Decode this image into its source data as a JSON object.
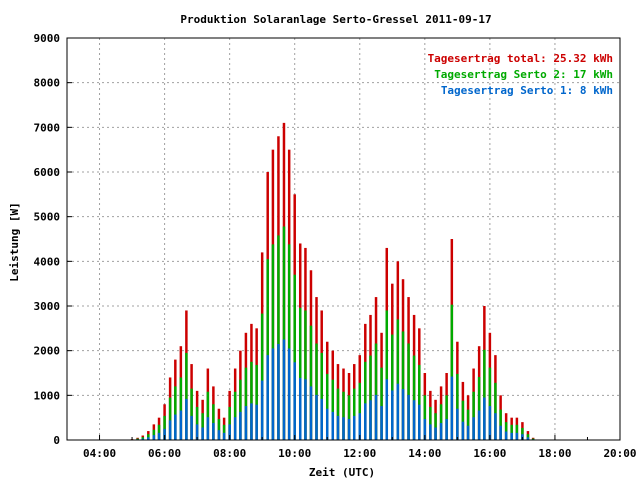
{
  "chart_data": {
    "type": "bar",
    "title": "Produktion Solaranlage Serto-Gressel 2011-09-17",
    "xlabel": "Zeit (UTC)",
    "ylabel": "Leistung [W]",
    "xlim_hours": [
      3.0,
      20.0
    ],
    "ylim": [
      0,
      9000
    ],
    "x_ticks": [
      "04:00",
      "06:00",
      "08:00",
      "10:00",
      "12:00",
      "14:00",
      "16:00",
      "18:00",
      "20:00"
    ],
    "y_ticks": [
      "0",
      "1000",
      "2000",
      "3000",
      "4000",
      "5000",
      "6000",
      "7000",
      "8000",
      "9000"
    ],
    "grid": true,
    "legend_position": "top-right",
    "legend": [
      {
        "label": "Tagesertrag total: 25.32 kWh",
        "color": "#cc0000"
      },
      {
        "label": "Tagesertrag Serto 2: 17 kWh",
        "color": "#00aa00"
      },
      {
        "label": "Tagesertrag Serto 1: 8 kWh",
        "color": "#0066cc"
      }
    ],
    "x_hours": [
      5.0,
      5.17,
      5.33,
      5.5,
      5.67,
      5.83,
      6.0,
      6.17,
      6.33,
      6.5,
      6.67,
      6.83,
      7.0,
      7.17,
      7.33,
      7.5,
      7.67,
      7.83,
      8.0,
      8.17,
      8.33,
      8.5,
      8.67,
      8.83,
      9.0,
      9.17,
      9.33,
      9.5,
      9.67,
      9.83,
      10.0,
      10.17,
      10.33,
      10.5,
      10.67,
      10.83,
      11.0,
      11.17,
      11.33,
      11.5,
      11.67,
      11.83,
      12.0,
      12.17,
      12.33,
      12.5,
      12.67,
      12.83,
      13.0,
      13.17,
      13.33,
      13.5,
      13.67,
      13.83,
      14.0,
      14.17,
      14.33,
      14.5,
      14.67,
      14.83,
      15.0,
      15.17,
      15.33,
      15.5,
      15.67,
      15.83,
      16.0,
      16.17,
      16.33,
      16.5,
      16.67,
      16.83,
      17.0,
      17.17,
      17.33
    ],
    "series": [
      {
        "name": "Tagesertrag total: 25.32 kWh",
        "color": "#cc0000",
        "values": [
          20,
          50,
          100,
          200,
          350,
          500,
          800,
          1400,
          1800,
          2100,
          2900,
          1700,
          1100,
          900,
          1600,
          1200,
          700,
          500,
          1100,
          1600,
          2000,
          2400,
          2600,
          2500,
          4200,
          6000,
          6500,
          6800,
          7100,
          6500,
          5500,
          4400,
          4300,
          3800,
          3200,
          2900,
          2200,
          2000,
          1700,
          1600,
          1500,
          1700,
          1900,
          2600,
          2800,
          3200,
          2400,
          4300,
          3500,
          4000,
          3600,
          3200,
          2800,
          2500,
          1500,
          1100,
          900,
          1200,
          1500,
          4500,
          2200,
          1300,
          1000,
          1600,
          2100,
          3000,
          2400,
          1900,
          1000,
          600,
          500,
          500,
          400,
          200,
          50
        ]
      },
      {
        "name": "Tagesertrag Serto 2: 17 kWh",
        "color": "#00aa00",
        "values": [
          12,
          32,
          65,
          130,
          230,
          340,
          540,
          950,
          1200,
          1400,
          1950,
          1150,
          740,
          600,
          1080,
          800,
          470,
          340,
          740,
          1080,
          1350,
          1620,
          1750,
          1680,
          2830,
          4050,
          4380,
          4580,
          4780,
          4380,
          3700,
          2960,
          2900,
          2560,
          2160,
          1950,
          1480,
          1350,
          1150,
          1080,
          1000,
          1150,
          1280,
          1750,
          1890,
          2160,
          1620,
          2900,
          2360,
          2700,
          2430,
          2160,
          1890,
          1680,
          1000,
          740,
          600,
          800,
          1000,
          3030,
          1480,
          880,
          680,
          1080,
          1410,
          2020,
          1620,
          1280,
          680,
          400,
          340,
          340,
          270,
          130,
          32
        ]
      },
      {
        "name": "Tagesertrag Serto 1: 8 kWh",
        "color": "#0066cc",
        "values": [
          6,
          15,
          30,
          60,
          110,
          160,
          250,
          440,
          570,
          660,
          920,
          540,
          350,
          280,
          510,
          380,
          220,
          160,
          350,
          510,
          630,
          760,
          820,
          790,
          1330,
          1900,
          2050,
          2150,
          2250,
          2050,
          1740,
          1390,
          1360,
          1200,
          1010,
          920,
          700,
          630,
          540,
          510,
          470,
          540,
          600,
          820,
          890,
          1010,
          760,
          1360,
          1110,
          1260,
          1140,
          1010,
          890,
          790,
          470,
          350,
          280,
          380,
          470,
          1420,
          700,
          410,
          320,
          510,
          660,
          950,
          760,
          600,
          320,
          190,
          160,
          160,
          130,
          60,
          15
        ]
      }
    ]
  }
}
